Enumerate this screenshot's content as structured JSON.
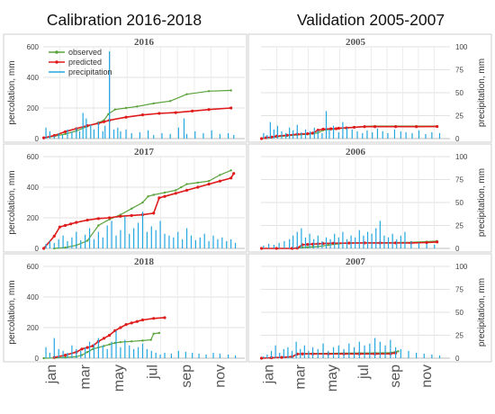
{
  "figure": {
    "column_titles": [
      "Calibration 2016-2018",
      "Validation 2005-2007"
    ],
    "month_labels": [
      "jan",
      "mar",
      "may",
      "jul",
      "sep",
      "nov"
    ],
    "colors": {
      "observed": "#5aa33c",
      "predicted": "#e01b1b",
      "precipitation": "#22a7e0"
    }
  },
  "chart_data": [
    {
      "type": "line",
      "title": "2016",
      "ylabel": "percolation, mm",
      "ylim": [
        0,
        600
      ],
      "yticks": [
        "0",
        "200",
        "400",
        "600"
      ],
      "y2label": "",
      "y2lim": [
        0,
        100
      ],
      "y2ticks": [],
      "grid": true,
      "legend": {
        "position": "top-left",
        "entries": [
          "observed",
          "predicted",
          "precipitation"
        ]
      },
      "x_unit": "day of year",
      "series": [
        {
          "name": "observed",
          "kind": "percolation",
          "x": [
            1,
            20,
            40,
            60,
            80,
            100,
            110,
            118,
            130,
            150,
            170,
            200,
            230,
            260,
            300,
            340
          ],
          "y": [
            5,
            15,
            30,
            50,
            80,
            105,
            120,
            160,
            190,
            200,
            210,
            230,
            245,
            290,
            310,
            315
          ]
        },
        {
          "name": "predicted",
          "kind": "percolation",
          "x": [
            1,
            20,
            40,
            60,
            80,
            100,
            110,
            120,
            150,
            180,
            210,
            240,
            270,
            300,
            340
          ],
          "y": [
            5,
            20,
            45,
            65,
            85,
            100,
            110,
            120,
            140,
            155,
            165,
            170,
            180,
            190,
            200
          ]
        },
        {
          "name": "precipitation",
          "kind": "precipitation",
          "x": [
            5,
            12,
            20,
            28,
            35,
            44,
            52,
            60,
            66,
            72,
            78,
            86,
            92,
            100,
            108,
            112,
            120,
            128,
            135,
            140,
            150,
            160,
            175,
            190,
            200,
            215,
            230,
            245,
            255,
            260,
            275,
            290,
            305,
            320,
            335,
            345
          ],
          "y": [
            12,
            8,
            3,
            6,
            4,
            10,
            7,
            12,
            8,
            28,
            22,
            15,
            10,
            18,
            8,
            14,
            95,
            10,
            12,
            8,
            10,
            6,
            7,
            9,
            4,
            6,
            5,
            12,
            22,
            5,
            8,
            6,
            9,
            5,
            6,
            4
          ]
        }
      ]
    },
    {
      "type": "line",
      "title": "2005",
      "ylabel": "",
      "ylim": [
        0,
        600
      ],
      "yticks": [],
      "y2label": "precipitation, mm",
      "y2lim": [
        0,
        100
      ],
      "y2ticks": [
        "0",
        "25",
        "50",
        "75",
        "100"
      ],
      "grid": true,
      "x_unit": "day of year",
      "series": [
        {
          "name": "observed",
          "kind": "percolation",
          "x": [
            1,
            10,
            20,
            30,
            50,
            70,
            90,
            100,
            110,
            120,
            135,
            145,
            150,
            165,
            180,
            200,
            220,
            260,
            300,
            340
          ],
          "y": [
            0,
            4,
            8,
            12,
            18,
            24,
            28,
            32,
            38,
            55,
            60,
            62,
            66,
            70,
            73,
            80,
            82,
            82,
            82,
            82
          ]
        },
        {
          "name": "predicted",
          "kind": "percolation",
          "x": [
            1,
            10,
            20,
            30,
            50,
            70,
            90,
            100,
            110,
            120,
            135,
            145,
            150,
            165,
            180,
            200,
            220,
            260,
            300,
            340
          ],
          "y": [
            0,
            6,
            10,
            16,
            22,
            28,
            32,
            36,
            55,
            62,
            64,
            65,
            68,
            70,
            74,
            78,
            78,
            78,
            78,
            79
          ]
        },
        {
          "name": "precipitation",
          "kind": "precipitation",
          "x": [
            5,
            12,
            18,
            25,
            32,
            40,
            48,
            55,
            62,
            70,
            78,
            86,
            95,
            103,
            110,
            118,
            126,
            132,
            140,
            150,
            158,
            166,
            176,
            186,
            196,
            205,
            215,
            225,
            235,
            245,
            258,
            270,
            280,
            292,
            305,
            318,
            330,
            345
          ],
          "y": [
            6,
            4,
            18,
            10,
            14,
            8,
            6,
            12,
            9,
            15,
            7,
            10,
            8,
            12,
            9,
            6,
            30,
            10,
            14,
            7,
            18,
            12,
            10,
            8,
            6,
            9,
            7,
            11,
            8,
            6,
            10,
            8,
            7,
            6,
            9,
            5,
            7,
            6
          ]
        }
      ]
    },
    {
      "type": "line",
      "title": "2017",
      "ylabel": "percolation, mm",
      "ylim": [
        0,
        600
      ],
      "yticks": [
        "0",
        "200",
        "400",
        "600"
      ],
      "y2label": "",
      "y2lim": [
        0,
        100
      ],
      "y2ticks": [],
      "grid": true,
      "x_unit": "day of year",
      "series": [
        {
          "name": "observed",
          "kind": "percolation",
          "x": [
            20,
            40,
            60,
            80,
            100,
            120,
            140,
            160,
            180,
            190,
            200,
            220,
            240,
            250,
            260,
            280,
            300,
            320,
            340
          ],
          "y": [
            0,
            5,
            20,
            50,
            150,
            190,
            220,
            260,
            300,
            340,
            350,
            365,
            380,
            400,
            420,
            430,
            440,
            480,
            510
          ]
        },
        {
          "name": "predicted",
          "kind": "percolation",
          "x": [
            1,
            20,
            30,
            40,
            50,
            60,
            80,
            100,
            120,
            140,
            160,
            180,
            200,
            210,
            220,
            240,
            260,
            280,
            300,
            320,
            340,
            345
          ],
          "y": [
            0,
            80,
            140,
            150,
            160,
            170,
            185,
            195,
            200,
            210,
            215,
            220,
            230,
            330,
            340,
            360,
            380,
            400,
            420,
            440,
            460,
            490
          ]
        },
        {
          "name": "precipitation",
          "kind": "precipitation",
          "x": [
            5,
            12,
            20,
            28,
            36,
            44,
            52,
            60,
            68,
            76,
            84,
            92,
            100,
            108,
            116,
            124,
            132,
            140,
            148,
            156,
            164,
            172,
            180,
            188,
            196,
            204,
            212,
            220,
            228,
            236,
            244,
            252,
            260,
            268,
            276,
            284,
            292,
            300,
            308,
            316,
            324,
            332,
            340,
            348
          ],
          "y": [
            5,
            8,
            6,
            10,
            14,
            8,
            12,
            18,
            9,
            15,
            22,
            10,
            18,
            12,
            25,
            30,
            14,
            20,
            35,
            16,
            22,
            28,
            40,
            18,
            24,
            20,
            30,
            16,
            14,
            12,
            18,
            10,
            22,
            14,
            9,
            12,
            16,
            8,
            14,
            10,
            12,
            8,
            10,
            6
          ]
        }
      ]
    },
    {
      "type": "line",
      "title": "2006",
      "ylabel": "",
      "ylim": [
        0,
        600
      ],
      "yticks": [],
      "y2label": "precipitation, mm",
      "y2lim": [
        0,
        100
      ],
      "y2ticks": [
        "0",
        "25",
        "50",
        "75",
        "100"
      ],
      "grid": true,
      "x_unit": "day of year",
      "series": [
        {
          "name": "observed",
          "kind": "percolation",
          "x": [
            60,
            70,
            80,
            90,
            100,
            110,
            130,
            150,
            170,
            200,
            230,
            260,
            290,
            320,
            340
          ],
          "y": [
            0,
            3,
            6,
            8,
            10,
            12,
            22,
            30,
            36,
            36,
            37,
            38,
            40,
            44,
            48
          ]
        },
        {
          "name": "predicted",
          "kind": "percolation",
          "x": [
            1,
            30,
            60,
            70,
            80,
            90,
            100,
            110,
            120,
            140,
            170,
            200,
            230,
            260,
            290,
            320,
            340
          ],
          "y": [
            0,
            0,
            0,
            2,
            24,
            26,
            28,
            30,
            32,
            34,
            35,
            36,
            36,
            36,
            36,
            38,
            42
          ]
        },
        {
          "name": "precipitation",
          "kind": "precipitation",
          "x": [
            5,
            15,
            25,
            35,
            45,
            55,
            62,
            70,
            78,
            86,
            94,
            102,
            110,
            118,
            126,
            134,
            142,
            150,
            158,
            166,
            174,
            182,
            190,
            198,
            206,
            214,
            222,
            230,
            238,
            246,
            254,
            262,
            270,
            278,
            290,
            305,
            320,
            335
          ],
          "y": [
            3,
            5,
            4,
            6,
            8,
            10,
            14,
            18,
            22,
            12,
            16,
            10,
            14,
            8,
            12,
            10,
            16,
            12,
            18,
            10,
            14,
            12,
            20,
            14,
            18,
            16,
            22,
            30,
            14,
            12,
            16,
            10,
            14,
            18,
            8,
            6,
            5,
            4
          ]
        }
      ]
    },
    {
      "type": "line",
      "title": "2018",
      "ylabel": "percolation, mm",
      "ylim": [
        0,
        600
      ],
      "yticks": [
        "0",
        "200",
        "400",
        "600"
      ],
      "y2label": "",
      "y2lim": [
        0,
        100
      ],
      "y2ticks": [],
      "grid": true,
      "x_unit": "day of year",
      "series": [
        {
          "name": "observed",
          "kind": "percolation",
          "x": [
            1,
            20,
            40,
            60,
            70,
            80,
            90,
            100,
            110,
            120,
            130,
            140,
            160,
            180,
            195,
            200,
            210
          ],
          "y": [
            0,
            2,
            5,
            10,
            20,
            40,
            60,
            70,
            80,
            90,
            100,
            105,
            110,
            115,
            120,
            160,
            165
          ]
        },
        {
          "name": "predicted",
          "kind": "percolation",
          "x": [
            20,
            40,
            60,
            70,
            80,
            90,
            100,
            110,
            120,
            130,
            140,
            150,
            160,
            170,
            180,
            200,
            220
          ],
          "y": [
            5,
            20,
            40,
            60,
            70,
            80,
            110,
            130,
            150,
            180,
            200,
            220,
            230,
            240,
            250,
            260,
            265
          ]
        },
        {
          "name": "precipitation",
          "kind": "precipitation",
          "x": [
            5,
            12,
            20,
            28,
            36,
            44,
            52,
            60,
            68,
            76,
            84,
            92,
            100,
            108,
            116,
            124,
            132,
            140,
            148,
            156,
            164,
            172,
            180,
            188,
            196,
            204,
            212,
            220,
            232,
            245,
            258,
            270,
            282,
            295,
            308,
            320,
            335,
            348
          ],
          "y": [
            12,
            6,
            22,
            10,
            8,
            6,
            14,
            10,
            8,
            12,
            18,
            16,
            22,
            14,
            10,
            18,
            30,
            12,
            20,
            14,
            10,
            12,
            16,
            10,
            8,
            6,
            4,
            6,
            5,
            8,
            7,
            6,
            5,
            4,
            6,
            5,
            4,
            3
          ]
        }
      ]
    },
    {
      "type": "line",
      "title": "2007",
      "ylabel": "",
      "ylim": [
        0,
        600
      ],
      "yticks": [],
      "y2label": "precipitation, mm",
      "y2lim": [
        0,
        100
      ],
      "y2ticks": [
        "0",
        "25",
        "50",
        "75",
        "100"
      ],
      "grid": true,
      "x_unit": "day of year",
      "series": [
        {
          "name": "observed",
          "kind": "percolation",
          "x": [
            1,
            20,
            40,
            60,
            70,
            80,
            100,
            130,
            160,
            190,
            220,
            250,
            260,
            265
          ],
          "y": [
            0,
            3,
            5,
            10,
            28,
            30,
            31,
            32,
            33,
            34,
            35,
            36,
            42,
            45
          ]
        },
        {
          "name": "predicted",
          "kind": "percolation",
          "x": [
            1,
            20,
            40,
            60,
            70,
            80,
            100,
            130,
            160,
            190,
            220,
            250,
            260
          ],
          "y": [
            0,
            3,
            5,
            10,
            27,
            28,
            28,
            28,
            28,
            28,
            28,
            29,
            34
          ]
        },
        {
          "name": "precipitation",
          "kind": "precipitation",
          "x": [
            5,
            12,
            20,
            28,
            36,
            44,
            52,
            60,
            68,
            76,
            84,
            92,
            100,
            110,
            120,
            130,
            140,
            150,
            160,
            170,
            180,
            190,
            200,
            210,
            220,
            230,
            240,
            250,
            260,
            270,
            285,
            300,
            315,
            330,
            345
          ],
          "y": [
            2,
            4,
            8,
            14,
            6,
            10,
            12,
            8,
            18,
            10,
            14,
            8,
            12,
            10,
            16,
            8,
            12,
            14,
            10,
            16,
            12,
            18,
            14,
            16,
            22,
            18,
            14,
            20,
            12,
            10,
            8,
            6,
            5,
            4,
            3
          ]
        }
      ]
    }
  ]
}
